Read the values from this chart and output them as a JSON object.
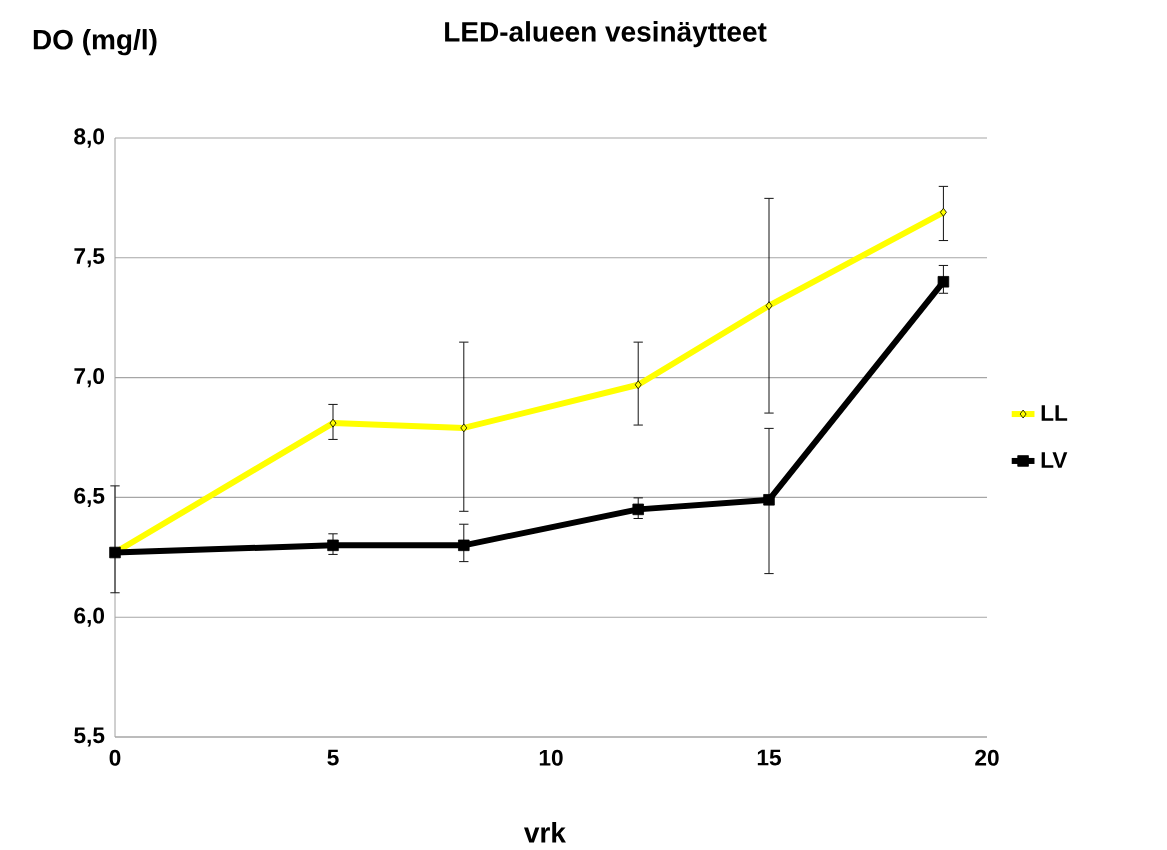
{
  "chart_data": {
    "type": "line",
    "title": "LED-alueen vesinäytteet",
    "ylabel": "DO (mg/l)",
    "xlabel": "vrk",
    "xlim": [
      0,
      20
    ],
    "xticks": [
      0,
      5,
      10,
      15,
      20
    ],
    "ylim": [
      5.5,
      8.0
    ],
    "yticks": [
      {
        "value": 5.5,
        "label": "5,5"
      },
      {
        "value": 6.0,
        "label": "6,0"
      },
      {
        "value": 6.5,
        "label": "6,5"
      },
      {
        "value": 7.0,
        "label": "7,0"
      },
      {
        "value": 7.5,
        "label": "7,5"
      },
      {
        "value": 8.0,
        "label": "8,0"
      }
    ],
    "grid": "y",
    "legend": "right",
    "series": [
      {
        "name": "LL",
        "color": "#ffff00",
        "marker": "diamond",
        "x": [
          0,
          5,
          8,
          12,
          15,
          19
        ],
        "values": [
          6.27,
          6.81,
          6.79,
          6.97,
          7.3,
          7.69
        ],
        "errors": [
          null,
          [
            6.74,
            6.89
          ],
          [
            6.44,
            7.15
          ],
          [
            6.8,
            7.15
          ],
          [
            6.85,
            7.75
          ],
          [
            7.57,
            7.8
          ]
        ]
      },
      {
        "name": "LV",
        "color": "#000000",
        "marker": "square",
        "x": [
          0,
          5,
          8,
          12,
          15,
          19
        ],
        "values": [
          6.27,
          6.3,
          6.3,
          6.45,
          6.49,
          7.4
        ],
        "errors": [
          [
            6.1,
            6.55
          ],
          [
            6.26,
            6.35
          ],
          [
            6.23,
            6.39
          ],
          [
            6.41,
            6.5
          ],
          [
            6.18,
            6.79
          ],
          [
            7.35,
            7.47
          ]
        ]
      }
    ]
  }
}
